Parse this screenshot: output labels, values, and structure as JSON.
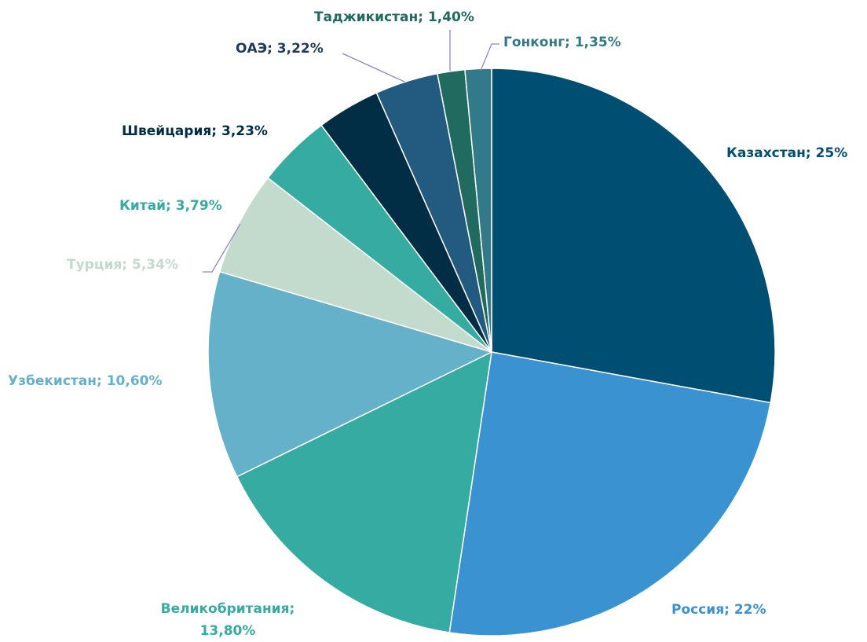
{
  "chart_data": {
    "type": "pie",
    "categories": [
      "Казахстан",
      "Россия",
      "Великобритания",
      "Узбекистан",
      "Турция",
      "Китай",
      "Швейцария",
      "ОАЭ",
      "Таджикистан",
      "Гонконг"
    ],
    "values": [
      25,
      22,
      13.8,
      10.6,
      5.34,
      3.79,
      3.23,
      3.22,
      1.4,
      1.35
    ],
    "value_labels": [
      "Казахстан; 25%",
      "Россия; 22%",
      "Великобритания; 13,80%",
      "Узбекистан; 10,60%",
      "Турция; 5,34%",
      "Китай; 3,79%",
      "Швейцария; 3,23%",
      "ОАЭ; 3,22%",
      "Таджикистан; 1,40%",
      "Гонконг; 1,35%"
    ],
    "colors": [
      "#004f73",
      "#3a93d0",
      "#35aba2",
      "#65b1ca",
      "#c3dbcd",
      "#35aba2",
      "#012d45",
      "#235a80",
      "#206a60",
      "#327a8a"
    ],
    "label_colors": [
      "#004f73",
      "#3a93d0",
      "#35aba2",
      "#65b1ca",
      "#c3dbcd",
      "#35aba2",
      "#012d45",
      "#1f3a5a",
      "#206a60",
      "#327a8a"
    ]
  }
}
